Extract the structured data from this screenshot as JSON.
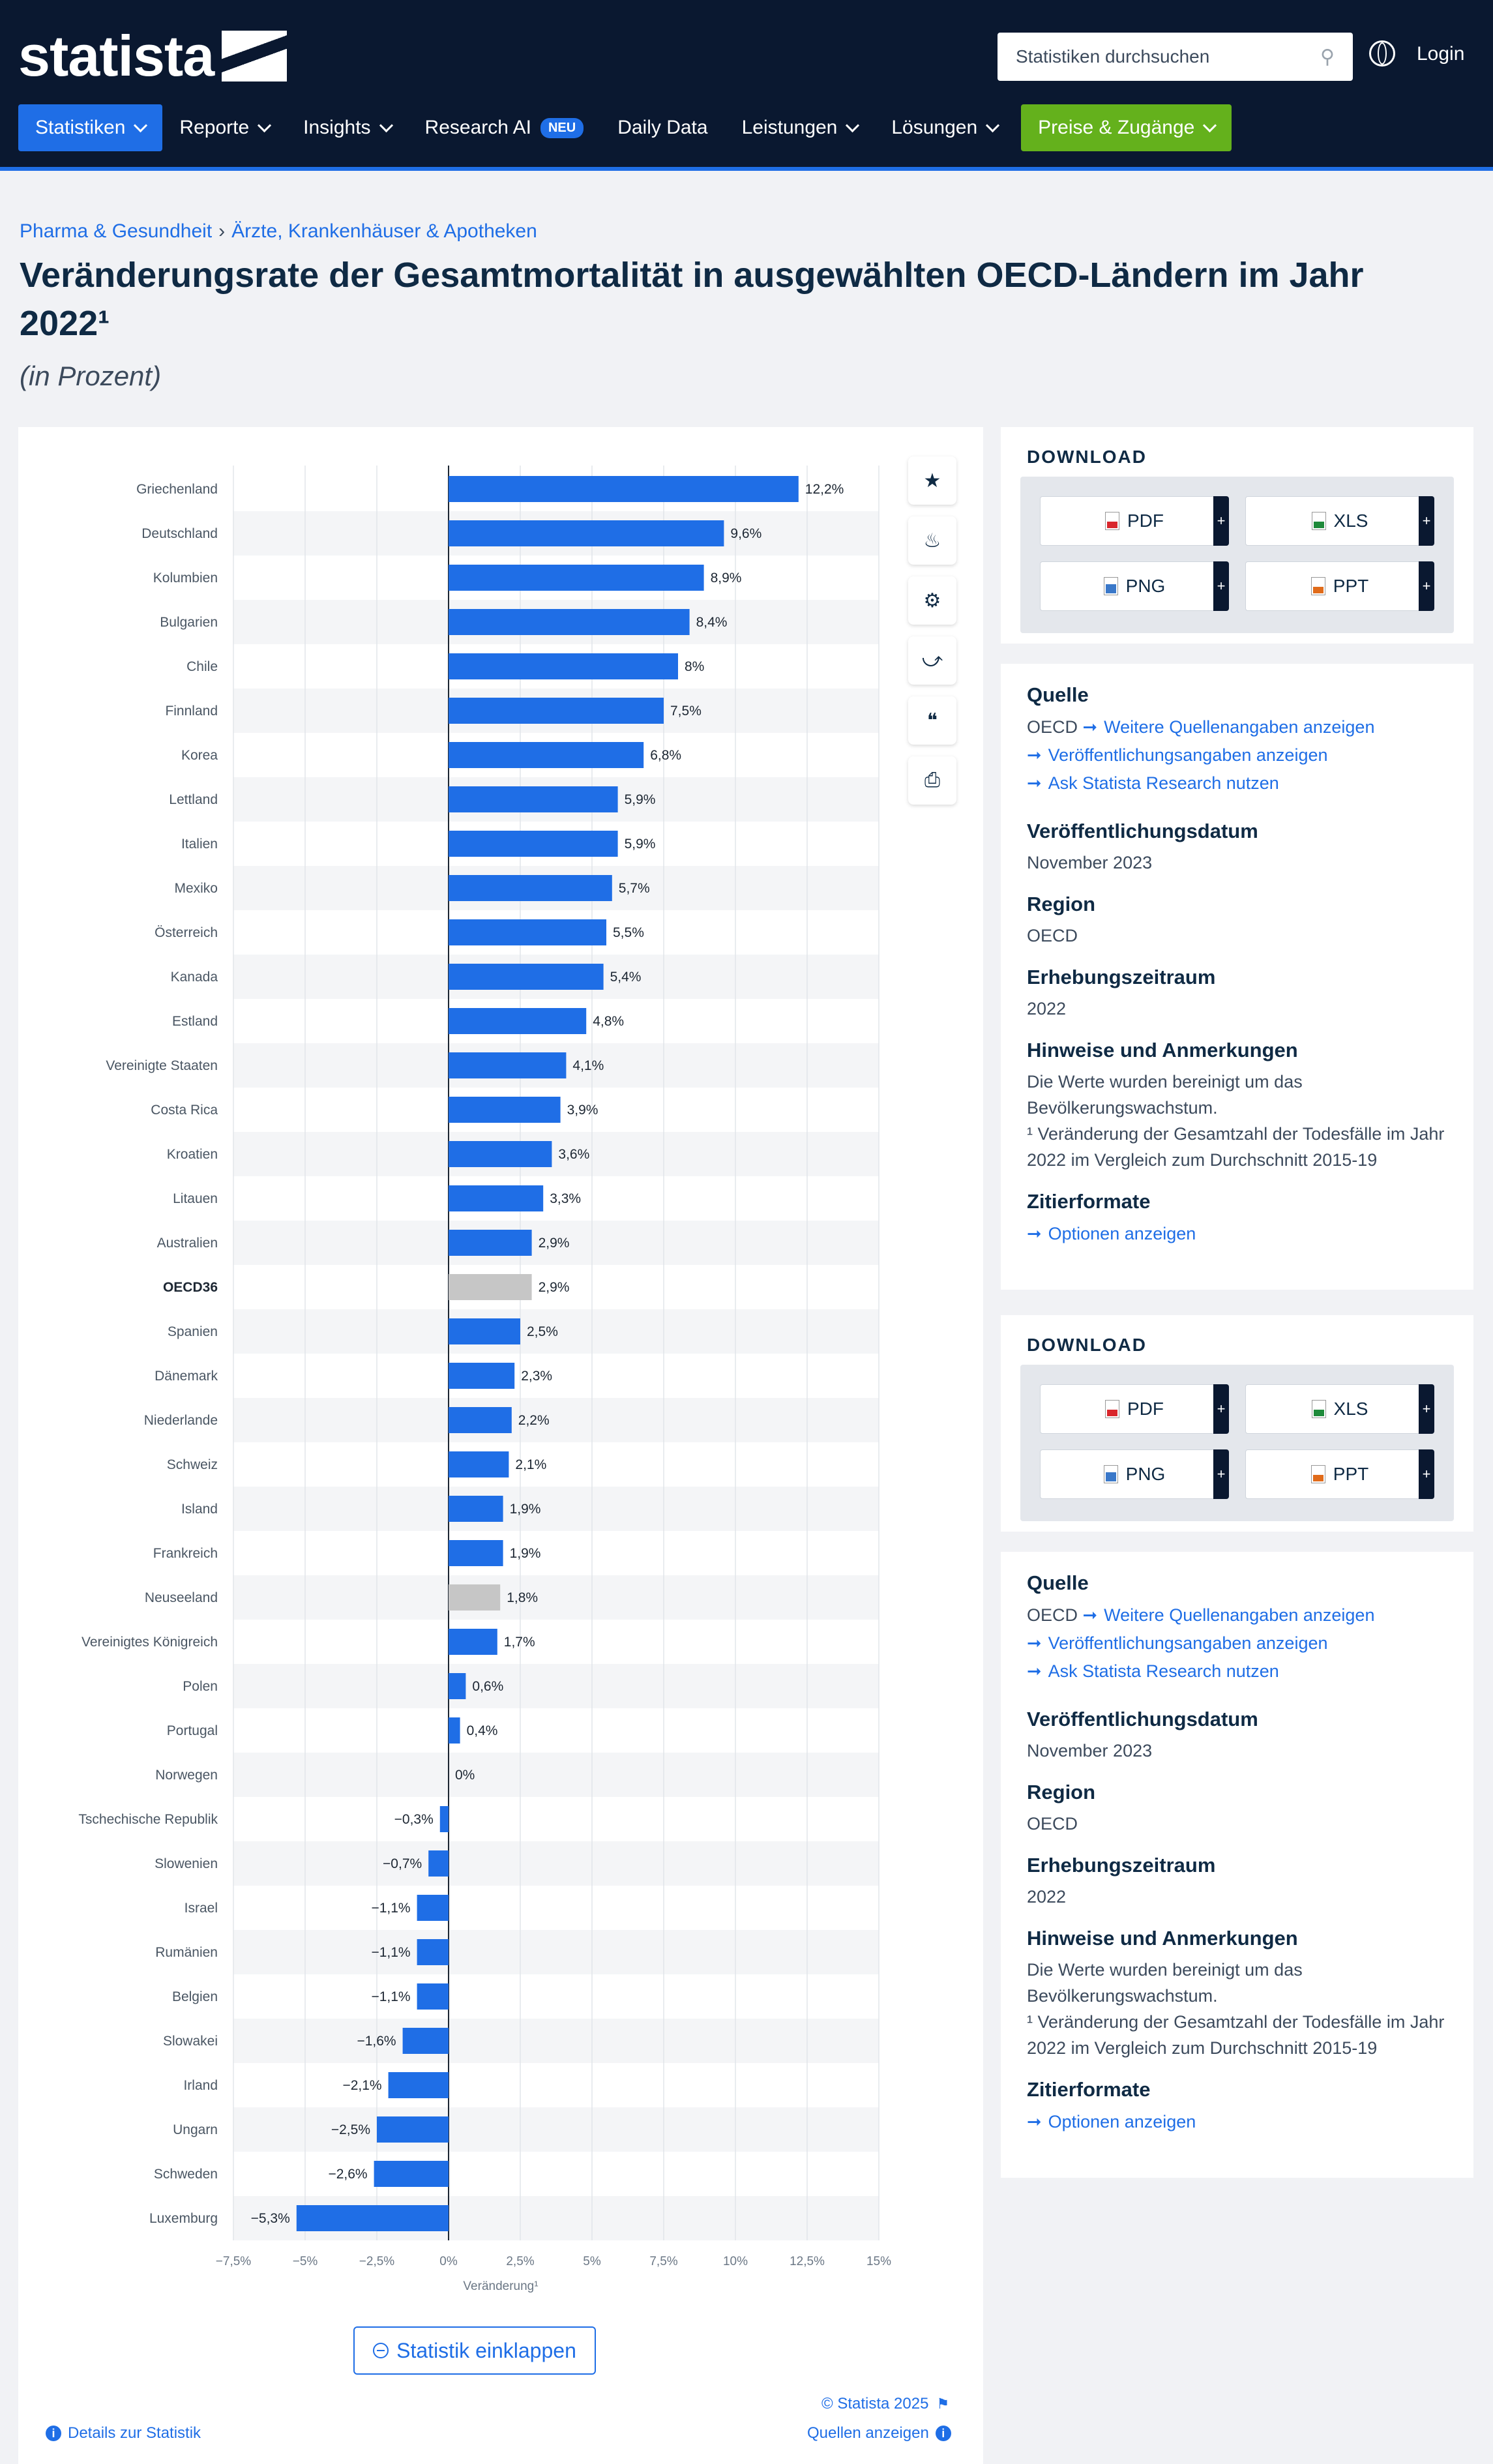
{
  "header": {
    "logo_text": "statista",
    "search_placeholder": "Statistiken durchsuchen",
    "login": "Login",
    "nav": [
      "Statistiken",
      "Reporte",
      "Insights",
      "Research AI",
      "Daily Data",
      "Leistungen",
      "Lösungen",
      "Preise & Zugänge"
    ],
    "neu_badge": "NEU"
  },
  "breadcrumb": {
    "level1": "Pharma & Gesundheit",
    "separator": "›",
    "level2": "Ärzte, Krankenhäuser & Apotheken"
  },
  "page": {
    "title": "Veränderungsrate der Gesamtmortalität in ausgewählten OECD-Ländern im Jahr 2022¹",
    "subtitle": "(in Prozent)"
  },
  "chart_data": {
    "type": "bar",
    "orientation": "horizontal",
    "categories": [
      "Griechenland",
      "Deutschland",
      "Kolumbien",
      "Bulgarien",
      "Chile",
      "Finnland",
      "Korea",
      "Lettland",
      "Italien",
      "Mexiko",
      "Österreich",
      "Kanada",
      "Estland",
      "Vereinigte Staaten",
      "Costa Rica",
      "Kroatien",
      "Litauen",
      "Australien",
      "OECD36",
      "Spanien",
      "Dänemark",
      "Niederlande",
      "Schweiz",
      "Island",
      "Frankreich",
      "Neuseeland",
      "Vereinigtes Königreich",
      "Polen",
      "Portugal",
      "Norwegen",
      "Tschechische Republik",
      "Slowenien",
      "Israel",
      "Rumänien",
      "Belgien",
      "Slowakei",
      "Irland",
      "Ungarn",
      "Schweden",
      "Luxemburg"
    ],
    "values": [
      12.2,
      9.6,
      8.9,
      8.4,
      8,
      7.5,
      6.8,
      5.9,
      5.9,
      5.7,
      5.5,
      5.4,
      4.8,
      4.1,
      3.9,
      3.6,
      3.3,
      2.9,
      2.9,
      2.5,
      2.3,
      2.2,
      2.1,
      1.9,
      1.9,
      1.8,
      1.7,
      0.6,
      0.4,
      0,
      -0.3,
      -0.7,
      -1.1,
      -1.1,
      -1.1,
      -1.6,
      -2.1,
      -2.5,
      -2.6,
      -5.3
    ],
    "value_labels": [
      "12,2%",
      "9,6%",
      "8,9%",
      "8,4%",
      "8%",
      "7,5%",
      "6,8%",
      "5,9%",
      "5,9%",
      "5,7%",
      "5,5%",
      "5,4%",
      "4,8%",
      "4,1%",
      "3,9%",
      "3,6%",
      "3,3%",
      "2,9%",
      "2,9%",
      "2,5%",
      "2,3%",
      "2,2%",
      "2,1%",
      "1,9%",
      "1,9%",
      "1,8%",
      "1,7%",
      "0,6%",
      "0,4%",
      "0%",
      "−0,3%",
      "−0,7%",
      "−1,1%",
      "−1,1%",
      "−1,1%",
      "−1,6%",
      "−2,1%",
      "−2,5%",
      "−2,6%",
      "−5,3%"
    ],
    "highlighted": [
      "OECD36",
      "Neuseeland"
    ],
    "bold_categories": [
      "OECD36"
    ],
    "xlim": [
      -7.5,
      15
    ],
    "xticks": [
      -7.5,
      -5,
      -2.5,
      0,
      2.5,
      5,
      7.5,
      10,
      12.5,
      15
    ],
    "xtick_labels": [
      "−7,5%",
      "−5%",
      "−2,5%",
      "0%",
      "2,5%",
      "5%",
      "7,5%",
      "10%",
      "12,5%",
      "15%"
    ],
    "xlabel": "Veränderung¹",
    "colors": {
      "bar": "#1f6ee6",
      "highlight": "#c6c6c6",
      "stripe": "#f4f5f7"
    },
    "grid": true
  },
  "chart_tools": [
    "star-icon",
    "bell-icon",
    "gear-icon",
    "share-icon",
    "quote-icon",
    "print-icon"
  ],
  "chart_footer": {
    "collapse_label": "Statistik einklappen",
    "copyright": "© Statista 2025",
    "details": "Details zur Statistik",
    "sources": "Quellen anzeigen"
  },
  "download": {
    "title": "DOWNLOAD",
    "buttons": [
      "PDF",
      "XLS",
      "PNG",
      "PPT"
    ],
    "plus": "+"
  },
  "info": {
    "source_label": "Quelle",
    "source_value": "OECD",
    "links": [
      "Weitere Quellenangaben anzeigen",
      "Veröffentlichungsangaben anzeigen",
      "Ask Statista Research nutzen"
    ],
    "pubdate_label": "Veröffentlichungsdatum",
    "pubdate_value": "November 2023",
    "region_label": "Region",
    "region_value": "OECD",
    "period_label": "Erhebungszeitraum",
    "period_value": "2022",
    "notes_label": "Hinweise und Anmerkungen",
    "notes_line1": "Die Werte wurden bereinigt um das Bevölkerungswachstum.",
    "notes_line2": "¹ Veränderung der Gesamtzahl der Todesfälle im Jahr 2022 im Vergleich zum Durchschnitt 2015-19",
    "cite_label": "Zitierformate",
    "cite_link": "Optionen anzeigen"
  }
}
